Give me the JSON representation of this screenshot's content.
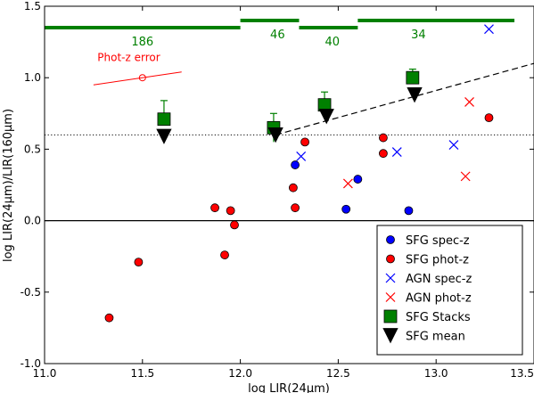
{
  "chart_data": {
    "type": "scatter",
    "xlabel": "log LIR(24μm)",
    "ylabel": "log LIR(24μm)/LIR(160μm)",
    "xlim": [
      11.0,
      13.5
    ],
    "ylim": [
      -1.0,
      1.5
    ],
    "xticks": [
      "11.0",
      "11.5",
      "12.0",
      "12.5",
      "13.0",
      "13.5"
    ],
    "yticks": [
      "-1.0",
      "-0.5",
      "0.0",
      "0.5",
      "1.0",
      "1.5"
    ],
    "grid": false,
    "legend_position": "lower-right",
    "colors": {
      "blue": "#0000ff",
      "red": "#ff0000",
      "green": "#008000",
      "black": "#000000"
    },
    "series": [
      {
        "name": "SFG spec-z",
        "marker": "circle",
        "color": "#0000ff",
        "x": [
          12.28,
          12.6,
          12.54,
          12.86
        ],
        "y": [
          0.39,
          0.29,
          0.08,
          0.07
        ]
      },
      {
        "name": "SFG phot-z",
        "marker": "circle",
        "color": "#ff0000",
        "x": [
          11.33,
          11.48,
          11.87,
          11.92,
          11.95,
          11.97,
          12.27,
          12.28,
          12.33,
          12.73,
          12.73,
          13.27
        ],
        "y": [
          -0.68,
          -0.29,
          0.09,
          -0.24,
          0.07,
          -0.03,
          0.23,
          0.09,
          0.55,
          0.58,
          0.47,
          0.72
        ]
      },
      {
        "name": "AGN spec-z",
        "marker": "x",
        "color": "#0000ff",
        "x": [
          12.31,
          12.8,
          13.09,
          13.27
        ],
        "y": [
          0.45,
          0.48,
          0.53,
          1.34
        ]
      },
      {
        "name": "AGN phot-z",
        "marker": "x",
        "color": "#ff0000",
        "x": [
          12.55,
          13.15,
          13.17
        ],
        "y": [
          0.26,
          0.31,
          0.83
        ]
      },
      {
        "name": "SFG Stacks",
        "marker": "square",
        "color": "#008000",
        "x": [
          11.61,
          12.17,
          12.43,
          12.88
        ],
        "y": [
          0.71,
          0.65,
          0.81,
          1.0
        ],
        "yerr_upper": [
          0.84,
          0.75,
          0.9,
          1.06
        ],
        "yerr_lower": [
          0.71,
          0.55,
          0.81,
          1.0
        ]
      },
      {
        "name": "SFG mean",
        "marker": "triangle-down",
        "color": "#000000",
        "x": [
          11.61,
          12.18,
          12.44,
          12.89
        ],
        "y": [
          0.59,
          0.6,
          0.73,
          0.88
        ]
      }
    ],
    "bin_bars": [
      {
        "x0": 11.0,
        "x1": 12.0,
        "y": 1.35,
        "count": "186",
        "label_x": 11.5,
        "label_y": 1.25
      },
      {
        "x0": 12.0,
        "x1": 12.3,
        "y": 1.4,
        "count": "46",
        "label_x": 12.19,
        "label_y": 1.3
      },
      {
        "x0": 12.3,
        "x1": 12.6,
        "y": 1.35,
        "count": "40",
        "label_x": 12.47,
        "label_y": 1.25
      },
      {
        "x0": 12.6,
        "x1": 13.4,
        "y": 1.4,
        "count": "34",
        "label_x": 12.91,
        "label_y": 1.3
      }
    ],
    "reference_lines": {
      "zero_line_y": 0.0,
      "dotted_line_y": 0.6,
      "dashed_line": {
        "x0": 12.18,
        "y0": 0.6,
        "x1": 13.5,
        "y1": 1.1
      }
    },
    "annotation": {
      "text": "Phot-z error",
      "text_x": 11.27,
      "text_y": 1.14,
      "color": "#ff0000",
      "line": {
        "x0": 11.25,
        "y0": 0.95,
        "x1": 11.7,
        "y1": 1.04
      },
      "marker": {
        "x": 11.5,
        "y": 1.0
      }
    }
  }
}
